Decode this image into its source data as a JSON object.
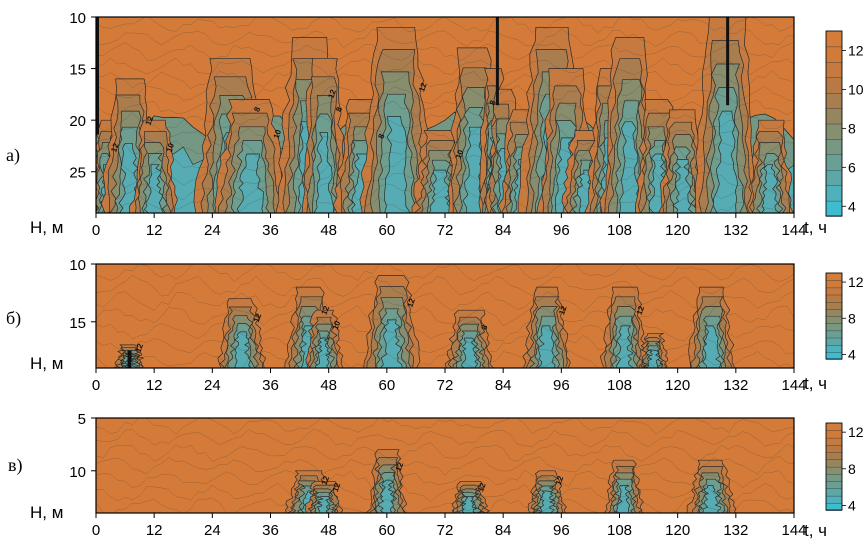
{
  "figure": {
    "colormap": [
      "#35c3dd",
      "#58abb0",
      "#6f9c8c",
      "#8d8a67",
      "#b07a47",
      "#cf7a3c",
      "#d67c38"
    ]
  },
  "chart_data": [
    {
      "type": "heatmap",
      "panel_label": "а)",
      "xlabel": "t, ч",
      "ylabel": "H, м",
      "xlim": [
        0,
        144
      ],
      "ylim": [
        10,
        29
      ],
      "y_inverted": true,
      "x_ticks": [
        0,
        12,
        24,
        36,
        48,
        60,
        72,
        84,
        96,
        108,
        120,
        132,
        144
      ],
      "y_ticks": [
        10,
        15,
        20,
        25
      ],
      "colorbar": {
        "range": [
          3.5,
          13
        ],
        "ticks": [
          4,
          6,
          8,
          10,
          12
        ]
      },
      "cool_bands": [
        {
          "t": 2,
          "w": 1.5,
          "top": 20
        },
        {
          "t": 7,
          "w": 3,
          "top": 16
        },
        {
          "t": 12,
          "w": 2.5,
          "top": 20
        },
        {
          "t": 28,
          "w": 4,
          "top": 14
        },
        {
          "t": 32,
          "w": 4,
          "top": 18
        },
        {
          "t": 44,
          "w": 3.5,
          "top": 12
        },
        {
          "t": 47,
          "w": 2.5,
          "top": 14
        },
        {
          "t": 55,
          "w": 3,
          "top": 18
        },
        {
          "t": 62,
          "w": 4,
          "top": 11
        },
        {
          "t": 71,
          "w": 3,
          "top": 21
        },
        {
          "t": 78,
          "w": 3,
          "top": 13
        },
        {
          "t": 82,
          "w": 1.5,
          "top": 15
        },
        {
          "t": 84,
          "w": 1.8,
          "top": 17
        },
        {
          "t": 88,
          "w": 2.5,
          "top": 19
        },
        {
          "t": 94,
          "w": 3.5,
          "top": 11
        },
        {
          "t": 97,
          "w": 3,
          "top": 15
        },
        {
          "t": 101,
          "w": 2.5,
          "top": 21
        },
        {
          "t": 106,
          "w": 2.5,
          "top": 15
        },
        {
          "t": 110,
          "w": 3,
          "top": 12
        },
        {
          "t": 116,
          "w": 2.5,
          "top": 18
        },
        {
          "t": 121,
          "w": 2.5,
          "top": 19
        },
        {
          "t": 130,
          "w": 3.5,
          "top": 10
        },
        {
          "t": 139,
          "w": 2.5,
          "top": 20
        }
      ],
      "deep_layer": {
        "depth": 20.5,
        "value": 7
      },
      "contour_labels": [
        "12",
        "12",
        "10",
        "8",
        "10",
        "12",
        "8",
        "8",
        "12",
        "10",
        "8"
      ]
    },
    {
      "type": "heatmap",
      "panel_label": "б)",
      "xlabel": "t, ч",
      "ylabel": "H, м",
      "xlim": [
        0,
        144
      ],
      "ylim": [
        10,
        19
      ],
      "y_inverted": true,
      "x_ticks": [
        0,
        12,
        24,
        36,
        48,
        60,
        72,
        84,
        96,
        108,
        120,
        132,
        144
      ],
      "y_ticks": [
        10,
        15
      ],
      "colorbar": {
        "range": [
          3.5,
          13
        ],
        "ticks": [
          4,
          8,
          12
        ]
      },
      "cool_bands": [
        {
          "t": 7,
          "w": 1.5,
          "top": 17
        },
        {
          "t": 30,
          "w": 2.5,
          "top": 13
        },
        {
          "t": 44,
          "w": 2.5,
          "top": 12
        },
        {
          "t": 47,
          "w": 2,
          "top": 14
        },
        {
          "t": 61,
          "w": 3,
          "top": 11
        },
        {
          "t": 77,
          "w": 2.5,
          "top": 14
        },
        {
          "t": 93,
          "w": 2.5,
          "top": 12
        },
        {
          "t": 109,
          "w": 2.5,
          "top": 12
        },
        {
          "t": 115,
          "w": 1.5,
          "top": 16
        },
        {
          "t": 127,
          "w": 2.5,
          "top": 12
        }
      ],
      "deep_layer": null,
      "contour_labels": [
        "12",
        "12",
        "12",
        "10",
        "12",
        "8",
        "12",
        "12"
      ]
    },
    {
      "type": "heatmap",
      "panel_label": "в)",
      "xlabel": "t, ч",
      "ylabel": "H, м",
      "xlim": [
        0,
        144
      ],
      "ylim": [
        5,
        14
      ],
      "y_inverted": true,
      "x_ticks": [
        0,
        12,
        24,
        36,
        48,
        60,
        72,
        84,
        96,
        108,
        120,
        132,
        144
      ],
      "y_ticks": [
        5,
        10
      ],
      "colorbar": {
        "range": [
          3.5,
          13
        ],
        "ticks": [
          4,
          8,
          12
        ]
      },
      "cool_bands": [
        {
          "t": 44,
          "w": 2.5,
          "top": 10
        },
        {
          "t": 47,
          "w": 2,
          "top": 11
        },
        {
          "t": 60,
          "w": 2,
          "top": 8
        },
        {
          "t": 77,
          "w": 2,
          "top": 11
        },
        {
          "t": 93,
          "w": 2,
          "top": 10
        },
        {
          "t": 109,
          "w": 2,
          "top": 9
        },
        {
          "t": 127,
          "w": 2.5,
          "top": 9
        }
      ],
      "deep_layer": null,
      "contour_labels": [
        "12",
        "12",
        "12",
        "12",
        "12"
      ]
    }
  ]
}
